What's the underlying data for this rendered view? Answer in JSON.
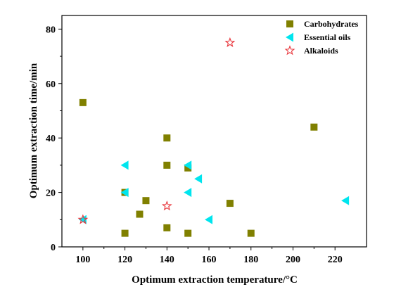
{
  "chart_data": {
    "type": "scatter",
    "xlabel": "Optimum extraction temperature/°C",
    "ylabel": "Optimum extraction time/min",
    "xlim": [
      90,
      235
    ],
    "ylim": [
      0,
      85
    ],
    "xticks": [
      100,
      120,
      140,
      160,
      180,
      200,
      220
    ],
    "yticks": [
      0,
      20,
      40,
      60,
      80
    ],
    "grid": false,
    "legend_position": "top-right",
    "series": [
      {
        "name": "Carbohydrates",
        "marker": "square",
        "color": "#808000",
        "points": [
          [
            100,
            53
          ],
          [
            120,
            20
          ],
          [
            120,
            5
          ],
          [
            127,
            12
          ],
          [
            130,
            17
          ],
          [
            140,
            40
          ],
          [
            140,
            30
          ],
          [
            140,
            7
          ],
          [
            150,
            29
          ],
          [
            150,
            5
          ],
          [
            170,
            16
          ],
          [
            180,
            5
          ],
          [
            210,
            44
          ]
        ]
      },
      {
        "name": "Essential oils",
        "marker": "triangle-left",
        "color": "#00e5ee",
        "points": [
          [
            100,
            10
          ],
          [
            120,
            30
          ],
          [
            120,
            20
          ],
          [
            150,
            30
          ],
          [
            150,
            20
          ],
          [
            155,
            25
          ],
          [
            160,
            10
          ],
          [
            225,
            17
          ]
        ]
      },
      {
        "name": "Alkaloids",
        "marker": "star-open",
        "color": "#e8343a",
        "points": [
          [
            100,
            10
          ],
          [
            140,
            15
          ],
          [
            170,
            75
          ]
        ]
      }
    ]
  }
}
